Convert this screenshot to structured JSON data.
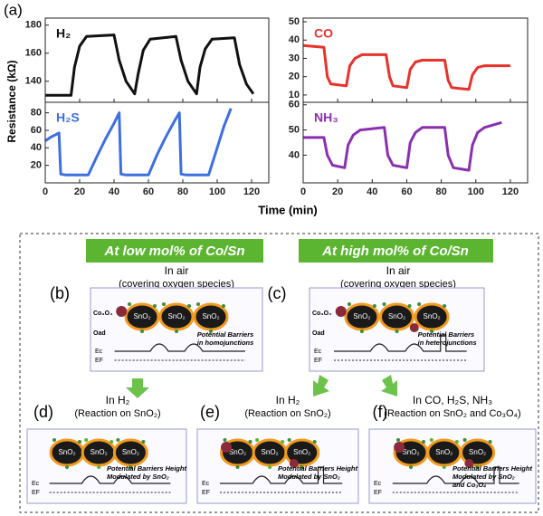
{
  "figure": {
    "label": "(a)",
    "y_label": "Resistance (kΩ)",
    "x_label": "Time (min)"
  },
  "chart_data": [
    {
      "type": "line",
      "xlim": [
        0,
        130
      ],
      "xticks": [
        0,
        20,
        40,
        60,
        80,
        100,
        120
      ],
      "ylim": [
        125,
        185
      ],
      "yticks": [
        140,
        160,
        180
      ],
      "x": [
        0,
        15,
        17,
        20,
        24,
        40,
        43,
        47,
        52,
        54,
        57,
        61,
        76,
        79,
        83,
        88,
        90,
        93,
        97,
        110,
        113,
        117,
        121
      ],
      "series": [
        {
          "name": "H₂",
          "color": "#111111",
          "values": [
            130,
            130,
            150,
            165,
            172,
            173,
            155,
            140,
            131,
            145,
            162,
            170,
            172,
            155,
            140,
            131,
            150,
            163,
            170,
            171,
            152,
            138,
            131
          ]
        }
      ]
    },
    {
      "type": "line",
      "xlim": [
        0,
        130
      ],
      "xticks": [
        0,
        20,
        40,
        60,
        80,
        100,
        120
      ],
      "ylim": [
        6,
        52
      ],
      "yticks": [
        10,
        20,
        30,
        40,
        50
      ],
      "x": [
        0,
        12,
        14,
        16,
        25,
        27,
        30,
        34,
        48,
        50,
        52,
        60,
        62,
        65,
        69,
        82,
        84,
        86,
        96,
        98,
        101,
        105,
        120
      ],
      "series": [
        {
          "name": "CO",
          "color": "#e8322b",
          "values": [
            37,
            36,
            20,
            16,
            15,
            26,
            30,
            32,
            32,
            20,
            15,
            14,
            24,
            28,
            29,
            29,
            18,
            14,
            13,
            21,
            25,
            26,
            26
          ]
        }
      ]
    },
    {
      "type": "line",
      "xlim": [
        0,
        130
      ],
      "xticks": [
        0,
        20,
        40,
        60,
        80,
        100,
        120
      ],
      "ylim": [
        0,
        92
      ],
      "yticks": [
        20,
        40,
        60,
        80
      ],
      "x": [
        0,
        3,
        6,
        8,
        9,
        12,
        25,
        30,
        35,
        40,
        43,
        44,
        47,
        60,
        65,
        70,
        75,
        78,
        79,
        82,
        95,
        100,
        104,
        108
      ],
      "series": [
        {
          "name": "H₂S",
          "color": "#3d6fe0",
          "values": [
            48,
            52,
            55,
            57,
            10,
            9,
            9,
            30,
            50,
            68,
            80,
            10,
            9,
            9,
            32,
            52,
            70,
            80,
            10,
            9,
            9,
            40,
            65,
            85
          ]
        }
      ]
    },
    {
      "type": "line",
      "xlim": [
        0,
        130
      ],
      "xticks": [
        0,
        20,
        40,
        60,
        80,
        100,
        120
      ],
      "ylim": [
        29,
        61
      ],
      "yticks": [
        40,
        50,
        60
      ],
      "x": [
        0,
        12,
        14,
        17,
        24,
        26,
        29,
        33,
        47,
        49,
        52,
        60,
        62,
        65,
        69,
        82,
        84,
        87,
        96,
        98,
        101,
        105,
        115
      ],
      "series": [
        {
          "name": "NH₃",
          "color": "#8a2fb0",
          "values": [
            47,
            47,
            40,
            36,
            35,
            44,
            48,
            50,
            51,
            40,
            36,
            35,
            45,
            49,
            51,
            51,
            40,
            35,
            34,
            44,
            49,
            51,
            53
          ]
        }
      ]
    }
  ],
  "diagram": {
    "banners": [
      "At low mol% of Co/Sn",
      "At high mol% of Co/Sn"
    ],
    "particle": "SnO₂",
    "co3o4": "Co₃O₄",
    "oad": "Oad",
    "ec": "Ec",
    "ef": "EF",
    "panels": [
      {
        "label": "(b)",
        "title": "In air",
        "subtitle": "(covering oxygen species)",
        "note": [
          "Potential Barriers",
          "in homojunctions"
        ]
      },
      {
        "label": "(c)",
        "title": "In air",
        "subtitle": "(covering oxygen species)",
        "note": [
          "Potential Barriers",
          "in heterojunctions"
        ]
      },
      {
        "label": "(d)",
        "title": "In H₂",
        "subtitle": "(Reaction on SnO₂)",
        "note": [
          "Potential Barriers Height",
          "Modulated by SnO₂"
        ]
      },
      {
        "label": "(e)",
        "title": "In H₂",
        "subtitle": "(Reaction on SnO₂)",
        "note": [
          "Potential Barriers Height",
          "Modulated by SnO₂"
        ]
      },
      {
        "label": "(f)",
        "title": "In CO, H₂S, NH₃",
        "subtitle": "(Reaction on SnO₂ and Co₃O₄)",
        "note": [
          "Potential Barriers Height",
          "Modulated by SnO₂",
          "and Co₃O₄"
        ]
      }
    ]
  }
}
